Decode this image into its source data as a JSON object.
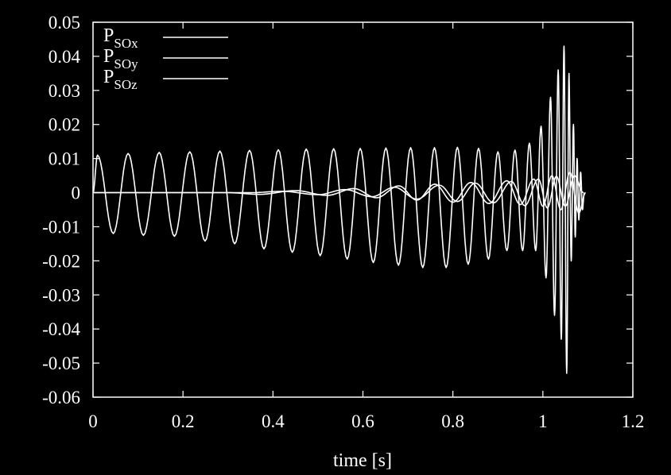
{
  "chart_data": {
    "type": "line",
    "title": "",
    "xlabel": "time [s]",
    "ylabel": "",
    "xlim": [
      0,
      1.2
    ],
    "ylim": [
      -0.06,
      0.05
    ],
    "xticks": [
      "0",
      "0.2",
      "0.4",
      "0.6",
      "0.8",
      "1",
      "1.2"
    ],
    "yticks": [
      "0.05",
      "0.04",
      "0.03",
      "0.02",
      "0.01",
      "0",
      "-0.01",
      "-0.02",
      "-0.03",
      "-0.04",
      "-0.05",
      "-0.06"
    ],
    "grid": false,
    "legend_position": "top-left",
    "line_color": "#ffffff",
    "background_color": "#000000",
    "series": [
      {
        "name": "PSOx",
        "legend": {
          "main": "P",
          "sub": "SOx"
        },
        "x": [
          0,
          0.01,
          0.045,
          0.078,
          0.112,
          0.147,
          0.181,
          0.215,
          0.249,
          0.282,
          0.315,
          0.348,
          0.38,
          0.412,
          0.443,
          0.474,
          0.505,
          0.535,
          0.565,
          0.594,
          0.623,
          0.651,
          0.679,
          0.706,
          0.733,
          0.759,
          0.785,
          0.81,
          0.834,
          0.857,
          0.879,
          0.9,
          0.92,
          0.938,
          0.955,
          0.97,
          0.984,
          0.996,
          1.007,
          1.017,
          1.026,
          1.034,
          1.041,
          1.047,
          1.053,
          1.058,
          1.063,
          1.068,
          1.072,
          1.076,
          1.08,
          1.084,
          1.088,
          1.092
        ],
        "y": [
          0.0,
          0.011,
          -0.012,
          0.0115,
          -0.0125,
          0.0118,
          -0.0128,
          0.012,
          -0.0142,
          0.0122,
          -0.015,
          0.0124,
          -0.0165,
          0.0126,
          -0.0175,
          0.0128,
          -0.0185,
          0.0129,
          -0.0195,
          0.013,
          -0.0205,
          0.0131,
          -0.0213,
          0.0132,
          -0.022,
          0.0132,
          -0.022,
          0.0133,
          -0.021,
          0.013,
          -0.0195,
          0.012,
          -0.017,
          0.0125,
          -0.017,
          0.0145,
          -0.017,
          0.0195,
          -0.025,
          0.028,
          -0.036,
          0.036,
          -0.043,
          0.043,
          -0.053,
          0.035,
          -0.02,
          0.02,
          -0.013,
          0.01,
          -0.008,
          0.006,
          -0.005,
          0.0
        ]
      },
      {
        "name": "PSOy",
        "legend": {
          "main": "P",
          "sub": "SOy"
        },
        "x": [
          0,
          0.3,
          0.37,
          0.45,
          0.52,
          0.58,
          0.63,
          0.68,
          0.72,
          0.76,
          0.8,
          0.84,
          0.88,
          0.92,
          0.95,
          0.98,
          1.0,
          1.02,
          1.04,
          1.06,
          1.08,
          1.095
        ],
        "y": [
          0.0,
          0.0,
          -0.0005,
          0.0006,
          -0.0008,
          0.0012,
          -0.0015,
          0.002,
          -0.0022,
          0.0025,
          -0.0028,
          0.003,
          -0.0032,
          0.0035,
          -0.0035,
          0.004,
          -0.004,
          0.005,
          -0.005,
          0.006,
          -0.006,
          0.0
        ]
      },
      {
        "name": "PSOz",
        "legend": {
          "main": "P",
          "sub": "SOz"
        },
        "x": [
          0,
          0.35,
          0.42,
          0.5,
          0.56,
          0.62,
          0.67,
          0.72,
          0.77,
          0.81,
          0.85,
          0.89,
          0.93,
          0.96,
          0.99,
          1.01,
          1.03,
          1.05,
          1.07,
          1.09
        ],
        "y": [
          0.0,
          0.0,
          0.0004,
          -0.0006,
          0.0009,
          -0.0012,
          0.0016,
          -0.0019,
          0.0022,
          -0.0026,
          0.0028,
          -0.003,
          0.0033,
          -0.0038,
          0.004,
          -0.0045,
          0.0048,
          -0.004,
          0.005,
          0.0
        ]
      }
    ]
  }
}
